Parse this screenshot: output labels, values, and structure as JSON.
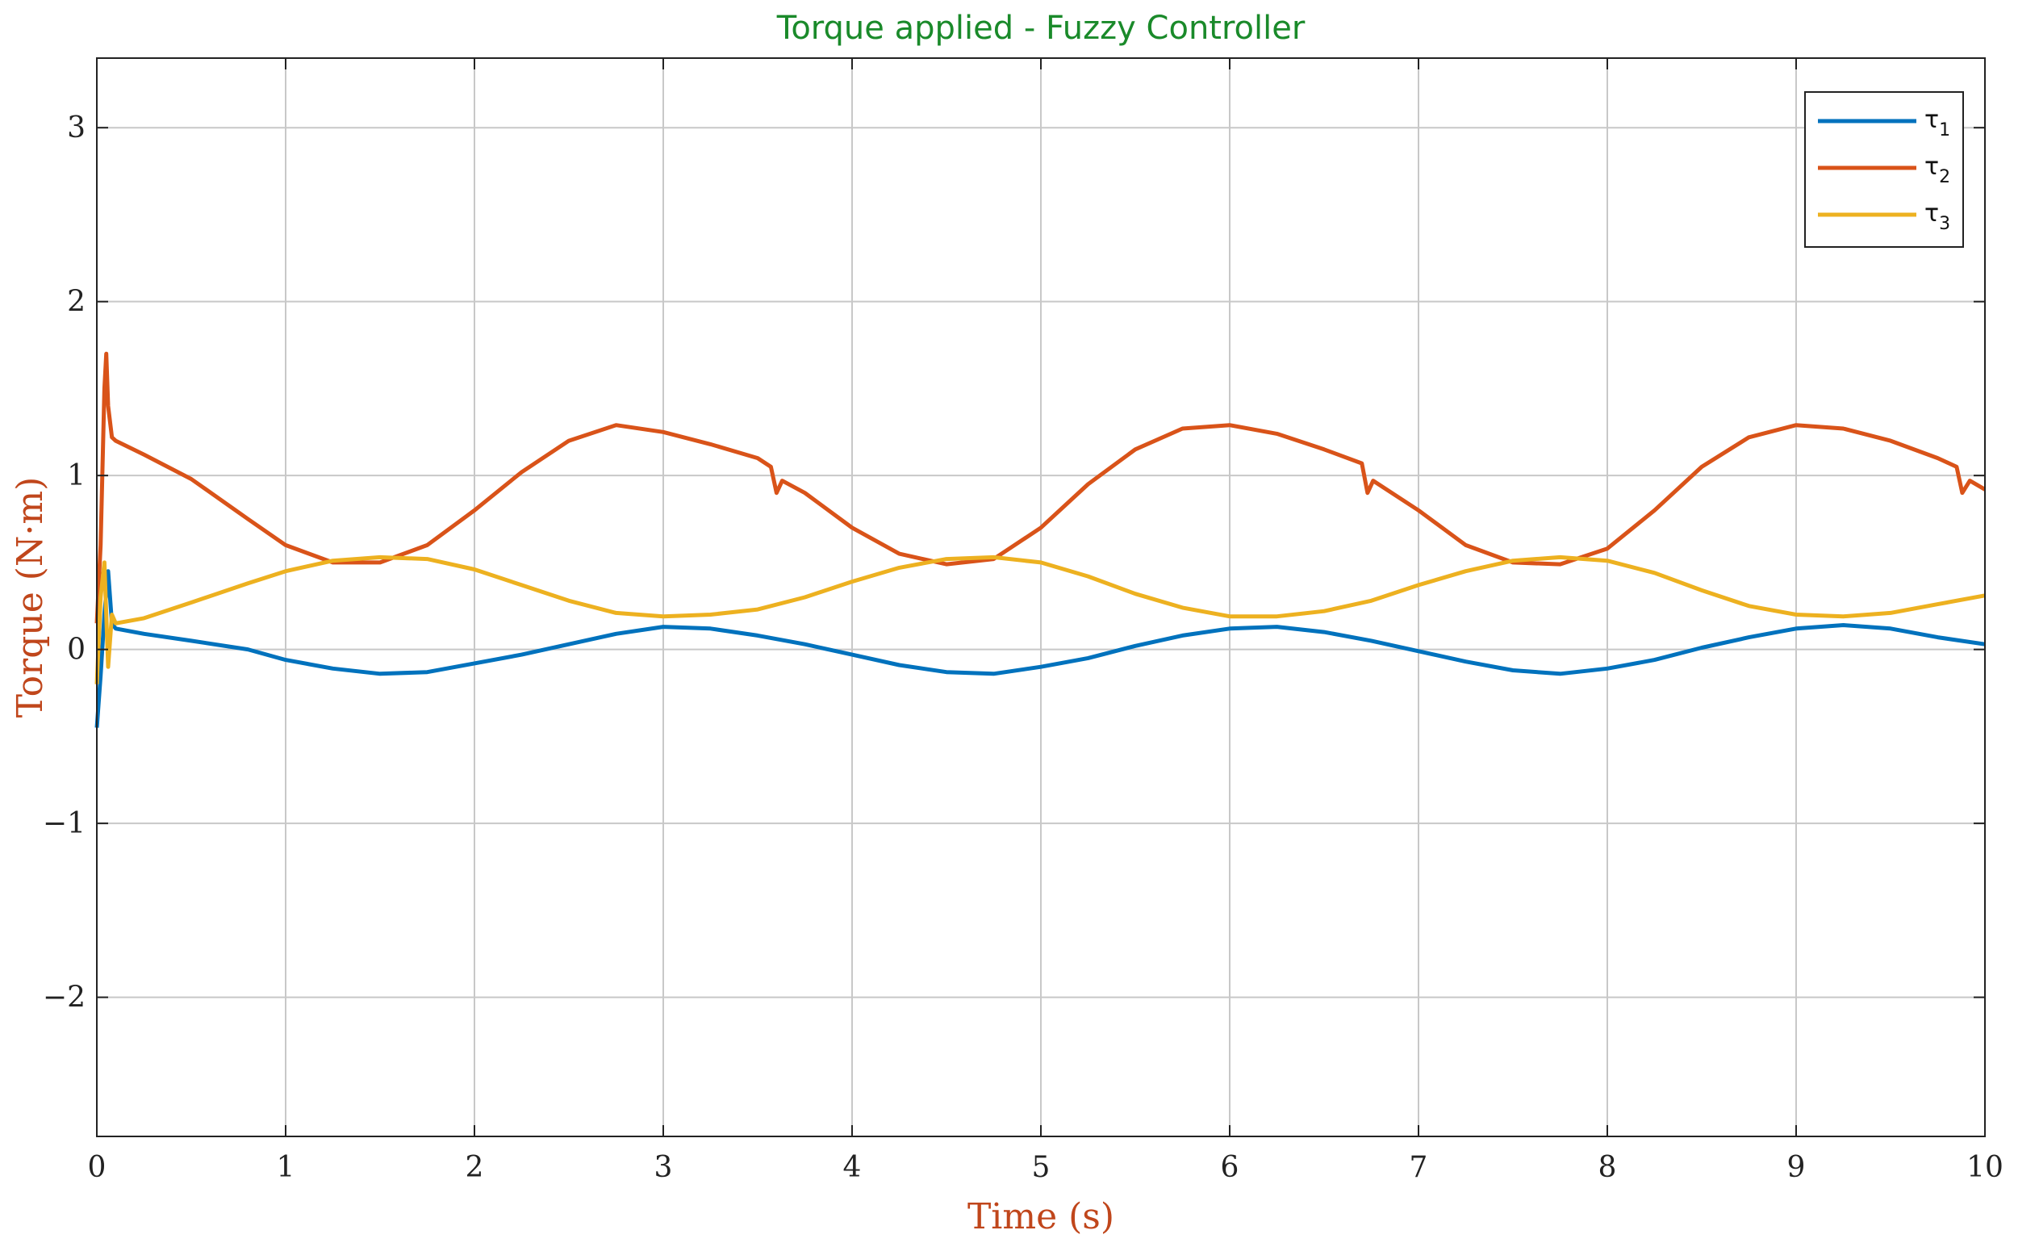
{
  "chart_data": {
    "type": "line",
    "title": "Torque applied - Fuzzy Controller",
    "xlabel": "Time (s)",
    "ylabel": "Torque (N·m)",
    "xlim": [
      0,
      10
    ],
    "ylim": [
      -2.8,
      3.4
    ],
    "xticks": [
      0,
      1,
      2,
      3,
      4,
      5,
      6,
      7,
      8,
      9,
      10
    ],
    "yticks": [
      -2,
      -1,
      0,
      1,
      2,
      3
    ],
    "grid": true,
    "legend_position": "top-right",
    "colors": {
      "title": "#1a8a2a",
      "axis_label": "#c0461b"
    },
    "series": [
      {
        "name": "τ1",
        "color": "#0072BD",
        "x": [
          0,
          0.02,
          0.04,
          0.06,
          0.08,
          0.1,
          0.25,
          0.5,
          0.8,
          1.0,
          1.25,
          1.5,
          1.75,
          2.0,
          2.25,
          2.5,
          2.75,
          3.0,
          3.25,
          3.5,
          3.75,
          4.0,
          4.25,
          4.5,
          4.75,
          5.0,
          5.25,
          5.5,
          5.75,
          6.0,
          6.25,
          6.5,
          6.75,
          7.0,
          7.25,
          7.5,
          7.75,
          8.0,
          8.25,
          8.5,
          8.75,
          9.0,
          9.25,
          9.5,
          9.75,
          10.0
        ],
        "values": [
          -0.45,
          -0.15,
          0.2,
          0.45,
          0.15,
          0.12,
          0.09,
          0.05,
          0.0,
          -0.06,
          -0.11,
          -0.14,
          -0.13,
          -0.08,
          -0.03,
          0.03,
          0.09,
          0.13,
          0.12,
          0.08,
          0.03,
          -0.03,
          -0.09,
          -0.13,
          -0.14,
          -0.1,
          -0.05,
          0.02,
          0.08,
          0.12,
          0.13,
          0.1,
          0.05,
          -0.01,
          -0.07,
          -0.12,
          -0.14,
          -0.11,
          -0.06,
          0.01,
          0.07,
          0.12,
          0.14,
          0.12,
          0.07,
          0.03
        ]
      },
      {
        "name": "τ2",
        "color": "#D95319",
        "x": [
          0,
          0.02,
          0.04,
          0.05,
          0.06,
          0.08,
          0.1,
          0.25,
          0.5,
          0.8,
          1.0,
          1.25,
          1.5,
          1.75,
          2.0,
          2.25,
          2.5,
          2.75,
          3.0,
          3.25,
          3.5,
          3.57,
          3.6,
          3.63,
          3.75,
          4.0,
          4.25,
          4.5,
          4.75,
          5.0,
          5.25,
          5.5,
          5.75,
          6.0,
          6.25,
          6.5,
          6.7,
          6.73,
          6.76,
          7.0,
          7.25,
          7.5,
          7.75,
          8.0,
          8.25,
          8.5,
          8.75,
          9.0,
          9.25,
          9.5,
          9.75,
          9.85,
          9.88,
          9.92,
          10.0
        ],
        "values": [
          0.15,
          0.6,
          1.5,
          1.7,
          1.4,
          1.22,
          1.2,
          1.12,
          0.98,
          0.75,
          0.6,
          0.5,
          0.5,
          0.6,
          0.8,
          1.02,
          1.2,
          1.29,
          1.25,
          1.18,
          1.1,
          1.05,
          0.9,
          0.97,
          0.9,
          0.7,
          0.55,
          0.49,
          0.52,
          0.7,
          0.95,
          1.15,
          1.27,
          1.29,
          1.24,
          1.15,
          1.07,
          0.9,
          0.97,
          0.8,
          0.6,
          0.5,
          0.49,
          0.58,
          0.8,
          1.05,
          1.22,
          1.29,
          1.27,
          1.2,
          1.1,
          1.05,
          0.9,
          0.97,
          0.92
        ]
      },
      {
        "name": "τ3",
        "color": "#EDB120",
        "x": [
          0,
          0.02,
          0.04,
          0.06,
          0.08,
          0.1,
          0.25,
          0.5,
          0.8,
          1.0,
          1.25,
          1.5,
          1.75,
          2.0,
          2.25,
          2.5,
          2.75,
          3.0,
          3.25,
          3.5,
          3.75,
          4.0,
          4.25,
          4.5,
          4.75,
          5.0,
          5.25,
          5.5,
          5.75,
          6.0,
          6.25,
          6.5,
          6.75,
          7.0,
          7.25,
          7.5,
          7.75,
          8.0,
          8.25,
          8.5,
          8.75,
          9.0,
          9.25,
          9.5,
          9.75,
          10.0
        ],
        "values": [
          -0.2,
          0.3,
          0.5,
          -0.1,
          0.2,
          0.15,
          0.18,
          0.27,
          0.38,
          0.45,
          0.51,
          0.53,
          0.52,
          0.46,
          0.37,
          0.28,
          0.21,
          0.19,
          0.2,
          0.23,
          0.3,
          0.39,
          0.47,
          0.52,
          0.53,
          0.5,
          0.42,
          0.32,
          0.24,
          0.19,
          0.19,
          0.22,
          0.28,
          0.37,
          0.45,
          0.51,
          0.53,
          0.51,
          0.44,
          0.34,
          0.25,
          0.2,
          0.19,
          0.21,
          0.26,
          0.31
        ]
      }
    ]
  }
}
